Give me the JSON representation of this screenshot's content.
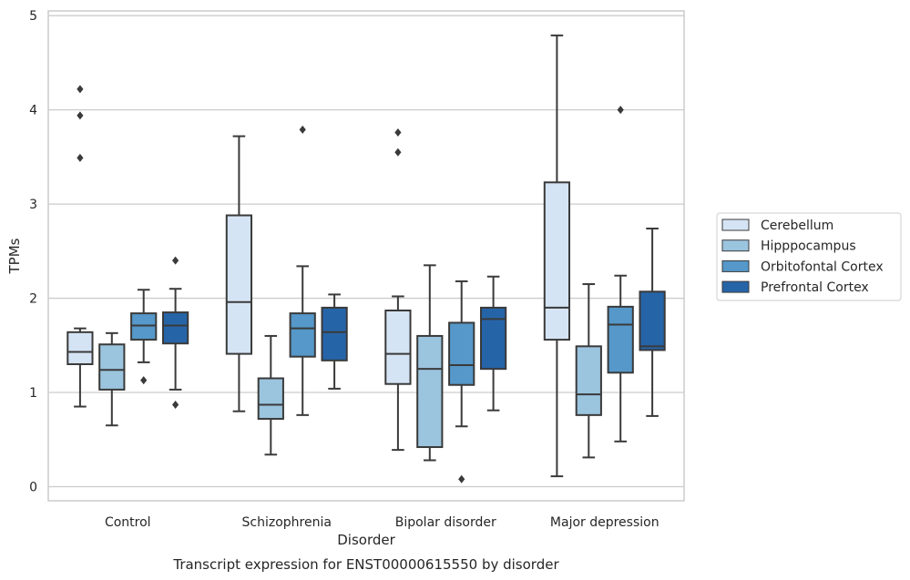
{
  "chart_data": {
    "type": "box",
    "title": "",
    "caption": "Transcript expression for ENST00000615550 by disorder",
    "xlabel": "Disorder",
    "ylabel": "TPMs",
    "ylim": [
      -0.15,
      5.05
    ],
    "yticks": [
      0,
      1,
      2,
      3,
      4,
      5
    ],
    "grid": "horizontal",
    "legend_position": "right",
    "categories": [
      "Control",
      "Schizophrenia",
      "Bipolar disorder",
      "Major depression"
    ],
    "series": [
      {
        "name": "Cerebellum",
        "color": "#d5e4f4",
        "boxes": [
          {
            "whisker_low": 0.85,
            "q1": 1.3,
            "median": 1.43,
            "q3": 1.64,
            "whisker_high": 1.68,
            "outliers": [
              3.49,
              3.94,
              4.22
            ]
          },
          {
            "whisker_low": 0.8,
            "q1": 1.41,
            "median": 1.96,
            "q3": 2.88,
            "whisker_high": 3.72,
            "outliers": []
          },
          {
            "whisker_low": 0.39,
            "q1": 1.09,
            "median": 1.41,
            "q3": 1.87,
            "whisker_high": 2.02,
            "outliers": [
              3.55,
              3.76
            ]
          },
          {
            "whisker_low": 0.11,
            "q1": 1.56,
            "median": 1.9,
            "q3": 3.23,
            "whisker_high": 4.79,
            "outliers": []
          }
        ]
      },
      {
        "name": "Hipppocampus",
        "color": "#9bc4de",
        "boxes": [
          {
            "whisker_low": 0.65,
            "q1": 1.03,
            "median": 1.24,
            "q3": 1.51,
            "whisker_high": 1.63,
            "outliers": []
          },
          {
            "whisker_low": 0.34,
            "q1": 0.72,
            "median": 0.87,
            "q3": 1.15,
            "whisker_high": 1.6,
            "outliers": []
          },
          {
            "whisker_low": 0.28,
            "q1": 0.42,
            "median": 1.25,
            "q3": 1.6,
            "whisker_high": 2.35,
            "outliers": []
          },
          {
            "whisker_low": 0.31,
            "q1": 0.76,
            "median": 0.98,
            "q3": 1.49,
            "whisker_high": 2.15,
            "outliers": []
          }
        ]
      },
      {
        "name": "Orbitofontal Cortex",
        "color": "#5598c9",
        "boxes": [
          {
            "whisker_low": 1.32,
            "q1": 1.56,
            "median": 1.71,
            "q3": 1.84,
            "whisker_high": 2.09,
            "outliers": [
              1.13
            ]
          },
          {
            "whisker_low": 0.76,
            "q1": 1.38,
            "median": 1.68,
            "q3": 1.84,
            "whisker_high": 2.34,
            "outliers": [
              3.79
            ]
          },
          {
            "whisker_low": 0.64,
            "q1": 1.08,
            "median": 1.29,
            "q3": 1.74,
            "whisker_high": 2.18,
            "outliers": [
              0.08
            ]
          },
          {
            "whisker_low": 0.48,
            "q1": 1.21,
            "median": 1.72,
            "q3": 1.91,
            "whisker_high": 2.24,
            "outliers": [
              4.0
            ]
          }
        ]
      },
      {
        "name": "Prefrontal Cortex",
        "color": "#2664a8",
        "boxes": [
          {
            "whisker_low": 1.03,
            "q1": 1.52,
            "median": 1.71,
            "q3": 1.85,
            "whisker_high": 2.1,
            "outliers": [
              0.87,
              2.4
            ]
          },
          {
            "whisker_low": 1.04,
            "q1": 1.34,
            "median": 1.64,
            "q3": 1.9,
            "whisker_high": 2.04,
            "outliers": []
          },
          {
            "whisker_low": 0.81,
            "q1": 1.25,
            "median": 1.78,
            "q3": 1.9,
            "whisker_high": 2.23,
            "outliers": []
          },
          {
            "whisker_low": 0.75,
            "q1": 1.45,
            "median": 1.49,
            "q3": 2.07,
            "whisker_high": 2.74,
            "outliers": []
          }
        ]
      }
    ]
  }
}
